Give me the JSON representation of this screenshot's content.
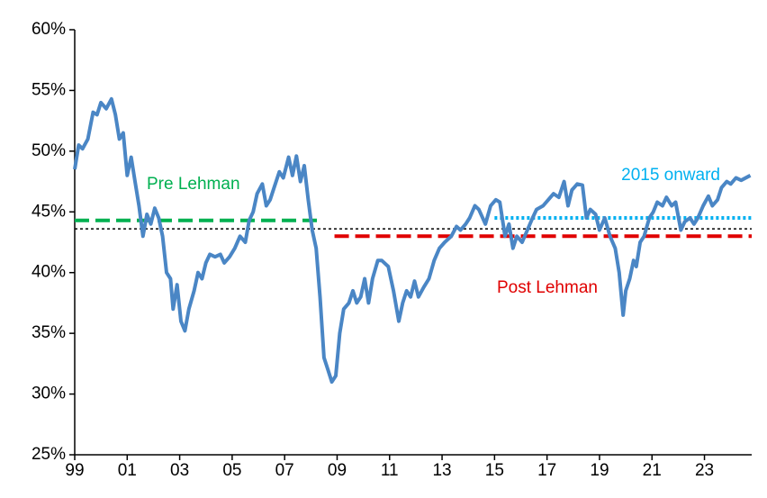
{
  "chart_data": {
    "type": "line",
    "xlim": [
      1999,
      2024.8
    ],
    "xticks": [
      {
        "value": 1999,
        "label": "99"
      },
      {
        "value": 2001,
        "label": "01"
      },
      {
        "value": 2003,
        "label": "03"
      },
      {
        "value": 2005,
        "label": "05"
      },
      {
        "value": 2007,
        "label": "07"
      },
      {
        "value": 2009,
        "label": "09"
      },
      {
        "value": 2011,
        "label": "11"
      },
      {
        "value": 2013,
        "label": "13"
      },
      {
        "value": 2015,
        "label": "15"
      },
      {
        "value": 2017,
        "label": "17"
      },
      {
        "value": 2019,
        "label": "19"
      },
      {
        "value": 2021,
        "label": "21"
      },
      {
        "value": 2023,
        "label": "23"
      }
    ],
    "ylim": [
      25,
      60
    ],
    "yticks": [
      {
        "value": 25,
        "label": "25%"
      },
      {
        "value": 30,
        "label": "30%"
      },
      {
        "value": 35,
        "label": "35%"
      },
      {
        "value": 40,
        "label": "40%"
      },
      {
        "value": 45,
        "label": "45%"
      },
      {
        "value": 50,
        "label": "50%"
      },
      {
        "value": 55,
        "label": "55%"
      },
      {
        "value": 60,
        "label": "60%"
      }
    ],
    "grid": false,
    "series": [
      {
        "color": "#4a86c5",
        "x": [
          1999.0,
          1999.15,
          1999.3,
          1999.5,
          1999.7,
          1999.85,
          2000.0,
          2000.2,
          2000.4,
          2000.55,
          2000.7,
          2000.85,
          2001.0,
          2001.15,
          2001.3,
          2001.45,
          2001.6,
          2001.75,
          2001.9,
          2002.05,
          2002.2,
          2002.35,
          2002.5,
          2002.65,
          2002.75,
          2002.9,
          2003.05,
          2003.2,
          2003.35,
          2003.55,
          2003.7,
          2003.85,
          2004.0,
          2004.15,
          2004.35,
          2004.55,
          2004.7,
          2004.9,
          2005.1,
          2005.3,
          2005.5,
          2005.65,
          2005.8,
          2005.95,
          2006.15,
          2006.3,
          2006.45,
          2006.6,
          2006.8,
          2006.95,
          2007.15,
          2007.3,
          2007.45,
          2007.6,
          2007.75,
          2007.9,
          2008.05,
          2008.2,
          2008.35,
          2008.5,
          2008.65,
          2008.8,
          2008.95,
          2009.1,
          2009.25,
          2009.45,
          2009.6,
          2009.75,
          2009.9,
          2010.05,
          2010.2,
          2010.35,
          2010.55,
          2010.7,
          2010.95,
          2011.15,
          2011.35,
          2011.5,
          2011.65,
          2011.8,
          2011.95,
          2012.1,
          2012.3,
          2012.5,
          2012.7,
          2012.9,
          2013.1,
          2013.35,
          2013.55,
          2013.7,
          2013.9,
          2014.05,
          2014.25,
          2014.4,
          2014.65,
          2014.85,
          2015.05,
          2015.2,
          2015.4,
          2015.55,
          2015.7,
          2015.85,
          2016.05,
          2016.25,
          2016.45,
          2016.6,
          2016.85,
          2017.05,
          2017.25,
          2017.45,
          2017.65,
          2017.8,
          2017.95,
          2018.15,
          2018.35,
          2018.5,
          2018.65,
          2018.85,
          2019.0,
          2019.2,
          2019.4,
          2019.6,
          2019.75,
          2019.9,
          2020.0,
          2020.15,
          2020.3,
          2020.4,
          2020.55,
          2020.7,
          2020.9,
          2021.05,
          2021.2,
          2021.4,
          2021.55,
          2021.75,
          2021.9,
          2022.1,
          2022.25,
          2022.45,
          2022.6,
          2022.75,
          2022.95,
          2023.15,
          2023.3,
          2023.5,
          2023.65,
          2023.85,
          2024.0,
          2024.2,
          2024.4,
          2024.75
        ],
        "values": [
          48.5,
          50.5,
          50.2,
          51.0,
          53.2,
          53.0,
          54.0,
          53.5,
          54.3,
          53.0,
          51.0,
          51.5,
          48.0,
          49.5,
          47.5,
          45.5,
          43.0,
          44.8,
          44.0,
          45.3,
          44.5,
          43.0,
          40.0,
          39.5,
          37.0,
          39.0,
          36.0,
          35.2,
          37.0,
          38.5,
          40.0,
          39.5,
          40.8,
          41.5,
          41.3,
          41.5,
          40.8,
          41.3,
          42.0,
          43.0,
          42.5,
          44.3,
          45.0,
          46.5,
          47.3,
          45.5,
          46.0,
          47.0,
          48.3,
          47.8,
          49.5,
          48.0,
          49.6,
          47.5,
          48.8,
          46.0,
          43.5,
          42.0,
          38.0,
          33.0,
          32.0,
          31.0,
          31.5,
          35.0,
          37.0,
          37.5,
          38.5,
          37.5,
          38.0,
          39.5,
          37.5,
          39.5,
          41.0,
          41.0,
          40.5,
          38.5,
          36.0,
          37.5,
          38.5,
          38.0,
          39.3,
          38.0,
          38.8,
          39.5,
          41.0,
          42.0,
          42.5,
          43.0,
          43.8,
          43.5,
          44.0,
          44.5,
          45.5,
          45.2,
          44.0,
          45.5,
          46.0,
          45.8,
          43.0,
          44.0,
          42.0,
          43.0,
          42.5,
          43.5,
          44.5,
          45.2,
          45.5,
          46.0,
          46.5,
          46.2,
          47.5,
          45.5,
          46.8,
          47.3,
          47.2,
          44.5,
          45.2,
          44.8,
          43.5,
          44.5,
          43.0,
          42.0,
          40.0,
          36.5,
          38.5,
          39.5,
          41.0,
          40.5,
          42.5,
          43.0,
          44.5,
          45.0,
          45.8,
          45.5,
          46.2,
          45.5,
          45.8,
          43.5,
          44.2,
          44.5,
          44.0,
          44.5,
          45.5,
          46.3,
          45.5,
          46.0,
          47.0,
          47.5,
          47.3,
          47.8,
          47.6,
          48.0
        ]
      }
    ],
    "reference_lines": [
      {
        "name": "Pre Lehman",
        "value": 44.3,
        "x": [
          1999,
          2008.4
        ],
        "color": "#00b050",
        "style": "dashed"
      },
      {
        "value": 43.6,
        "x": [
          1999,
          2024.8
        ],
        "color": "#000000",
        "style": "dotted"
      },
      {
        "name": "Post Lehman",
        "value": 43.0,
        "x": [
          2008.9,
          2024.8
        ],
        "color": "#e00000",
        "style": "dashed"
      },
      {
        "name": "2015 onward",
        "value": 44.5,
        "x": [
          2015,
          2024.8
        ],
        "color": "#00b0f0",
        "style": "dotted"
      }
    ]
  }
}
